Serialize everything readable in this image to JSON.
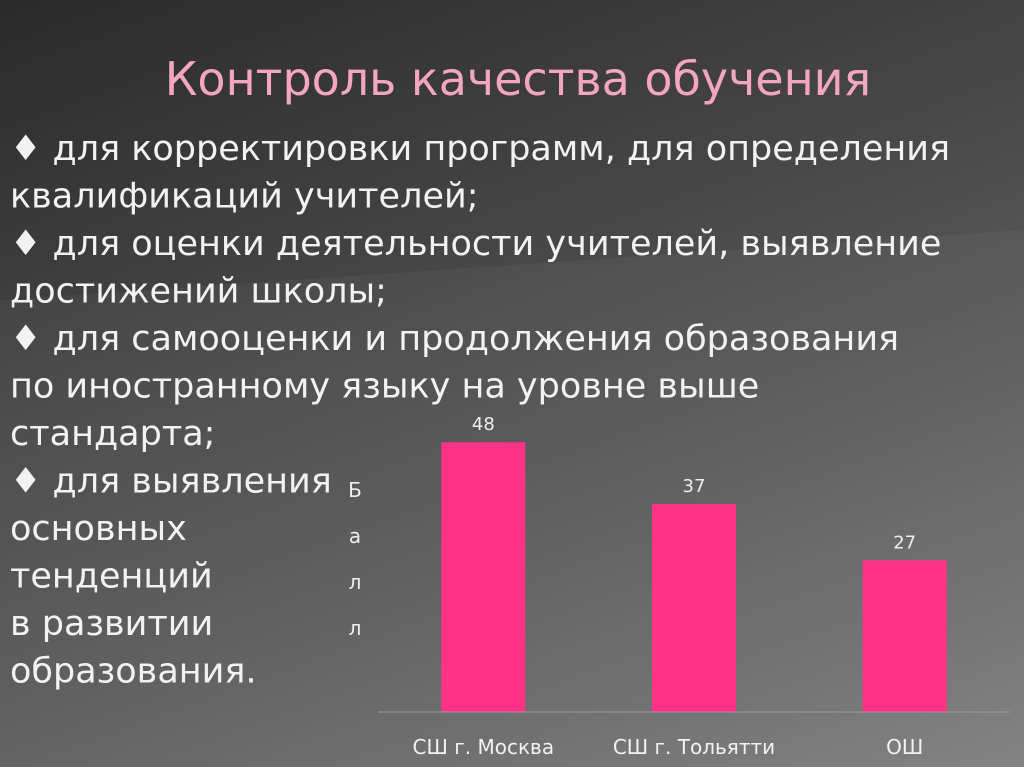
{
  "title": "Контроль качества обучения",
  "bullets": [
    [
      "♦ для корректировки программ, для определения",
      "квалификаций учителей;"
    ],
    [
      "♦ для оценки деятельности учителей, выявление",
      "достижений школы;"
    ],
    [
      "♦ для самооценки и продолжения образования",
      "по иностранному языку на уровне выше",
      "стандарта;"
    ],
    [
      "♦ для выявления",
      "основных",
      "тенденций",
      "в развитии",
      "образования."
    ]
  ],
  "chart_data": {
    "type": "bar",
    "y_label": "Балл",
    "categories": [
      "СШ г. Москва",
      "СШ г. Тольятти",
      "ОШ"
    ],
    "values": [
      48,
      37,
      27
    ],
    "color": "#ff3385",
    "ylim": [
      0,
      50
    ]
  }
}
